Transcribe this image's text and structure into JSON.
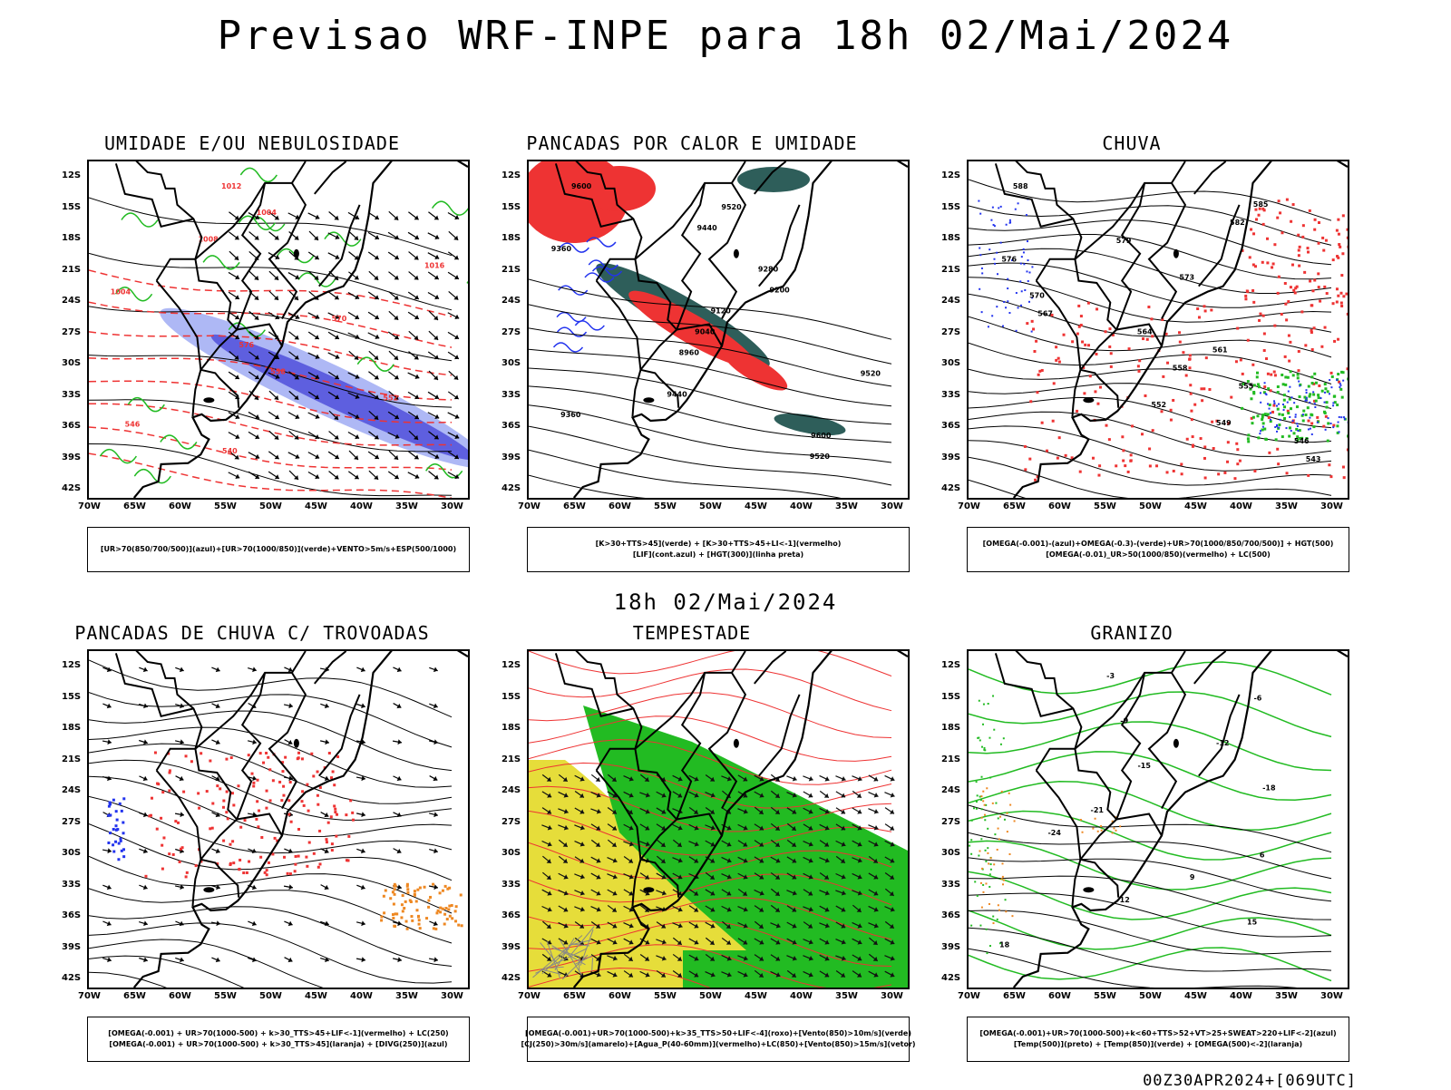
{
  "header": {
    "title": "Previsao WRF-INPE  para 18h 02/Mai/2024",
    "mid_title": "18h 02/Mai/2024",
    "footer": "00Z30APR2024+[069UTC]"
  },
  "axes": {
    "lat_labels": [
      "12S",
      "15S",
      "18S",
      "21S",
      "24S",
      "27S",
      "30S",
      "33S",
      "36S",
      "39S",
      "42S"
    ],
    "lon_labels": [
      "70W",
      "65W",
      "60W",
      "55W",
      "50W",
      "45W",
      "40W",
      "35W",
      "30W"
    ]
  },
  "panels": [
    {
      "title": "UMIDADE E/OU NEBULOSIDADE",
      "legend_lines": [
        "[UR>70(850/700/500)](azul)+[UR>70(1000/850)](verde)+VENTO>5m/s+ESP(500/1000)"
      ],
      "contour_labels": [
        "1012",
        "1004",
        "1008",
        "1016",
        "1004",
        "570",
        "576",
        "558",
        "552",
        "546",
        "540"
      ]
    },
    {
      "title": "PANCADAS POR CALOR E UMIDADE",
      "legend_lines": [
        "[K>30+TTS>45](verde) + [K>30+TTS>45+LI<-1](vermelho)",
        "[LIF](cont.azul) + [HGT(300)](linha preta)"
      ],
      "contour_labels": [
        "9600",
        "9520",
        "9440",
        "9360",
        "9280",
        "9200",
        "9120",
        "9040",
        "8960",
        "9520",
        "9440",
        "9360",
        "9600",
        "9520"
      ]
    },
    {
      "title": "CHUVA",
      "legend_lines": [
        "[OMEGA(-0.001)-(azul)+OMEGA(-0.3)-(verde)+UR>70(1000/850/700/500)] + HGT(500)",
        "[OMEGA(-0.01)_UR>50(1000/850)(vermelho) + LC(500)"
      ],
      "contour_labels": [
        "588",
        "585",
        "582",
        "579",
        "576",
        "573",
        "570",
        "567",
        "564",
        "561",
        "558",
        "555",
        "552",
        "549",
        "546",
        "543"
      ]
    },
    {
      "title": "PANCADAS DE CHUVA C/ TROVOADAS",
      "legend_lines": [
        "[OMEGA(-0.001) + UR>70(1000-500) + k>30_TTS>45+LIF<-1](vermelho) + LC(250)",
        "[OMEGA(-0.001) + UR>70(1000-500) + k>30_TTS>45](laranja) + [DIVG(250)](azul)"
      ],
      "contour_labels": []
    },
    {
      "title": "TEMPESTADE",
      "legend_lines": [
        "[OMEGA(-0.001)+UR>70(1000-500)+k>35_TTS>50+LIF<-4](roxo)+[Vento(850)>10m/s](verde)",
        "[CJ(250)>30m/s](amarelo)+[Agua_P(40-60mm)](vermelho)+LC(850)+[Vento(850)>15m/s](vetor)"
      ],
      "contour_labels": []
    },
    {
      "title": "GRANIZO",
      "legend_lines": [
        "[OMEGA(-0.001)+UR>70(1000-500)+k<60+TTS>52+VT>25+SWEAT>220+LIF<-2](azul)",
        "[Temp(500)](preto) + [Temp(850)](verde) + [OMEGA(500)<-2](laranja)"
      ],
      "contour_labels": [
        "-3",
        "-6",
        "-9",
        "-12",
        "-15",
        "-18",
        "-21",
        "-24",
        "6",
        "9",
        "12",
        "15",
        "18"
      ]
    }
  ]
}
